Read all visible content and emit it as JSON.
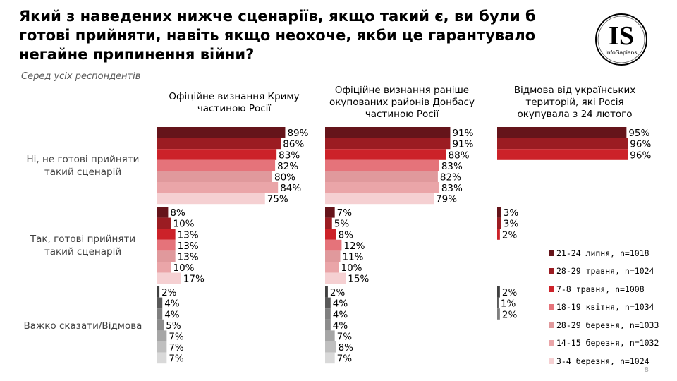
{
  "title": "Який з наведених нижче сценаріїв, якщо такий є, ви були б готові прийняти, навіть якщо неохоче, якби це гарантувало негайне припинення війни?",
  "subtitle": "Серед усіх респондентів",
  "logo": {
    "mark": "IS",
    "name": "InfoSapiens"
  },
  "page_number": "8",
  "chart_data": {
    "type": "bar",
    "orientation": "horizontal",
    "panels": [
      "Офіційне визнання Криму частиною Росії",
      "Офіційне визнання раніше окупованих районів Донбасу частиною Росії",
      "Відмова від українських територій, які Росія окупувала з 24 лютого"
    ],
    "categories": [
      "Ні, не готові прийняти такий сценарій",
      "Так, готові прийняти такий сценарій",
      "Важко сказати/Відмова"
    ],
    "series": [
      {
        "name": "21-24 липня, n=1018",
        "color": "#65141a",
        "gray": "#404040",
        "values": [
          [
            89,
            8,
            2
          ],
          [
            91,
            7,
            2
          ],
          [
            95,
            3,
            2
          ]
        ]
      },
      {
        "name": "28-29 травня, n=1024",
        "color": "#9b1c22",
        "gray": "#595959",
        "values": [
          [
            86,
            10,
            4
          ],
          [
            91,
            5,
            4
          ],
          [
            96,
            3,
            1
          ]
        ]
      },
      {
        "name": "7-8 травня, n=1008",
        "color": "#cc2229",
        "gray": "#7f7f7f",
        "values": [
          [
            83,
            13,
            4
          ],
          [
            88,
            8,
            4
          ],
          [
            96,
            2,
            2
          ]
        ]
      },
      {
        "name": "18-19 квітня, n=1034",
        "color": "#e5737a",
        "gray": "#8c8c8c",
        "values": [
          [
            82,
            13,
            5
          ],
          [
            83,
            12,
            4
          ],
          null
        ]
      },
      {
        "name": "28-29 березня, n=1033",
        "color": "#e0999c",
        "gray": "#a6a6a6",
        "values": [
          [
            80,
            13,
            7
          ],
          [
            82,
            11,
            7
          ],
          null
        ]
      },
      {
        "name": "14-15 березня, n=1032",
        "color": "#eaa5a8",
        "gray": "#bfbfbf",
        "values": [
          [
            84,
            10,
            7
          ],
          [
            83,
            10,
            8
          ],
          null
        ]
      },
      {
        "name": "3-4 березня, n=1024",
        "color": "#f5d0d2",
        "gray": "#d9d9d9",
        "values": [
          [
            75,
            17,
            7
          ],
          [
            79,
            15,
            7
          ],
          null
        ]
      }
    ],
    "value_suffix": "%",
    "legend": "bottom-right",
    "grid": false
  }
}
